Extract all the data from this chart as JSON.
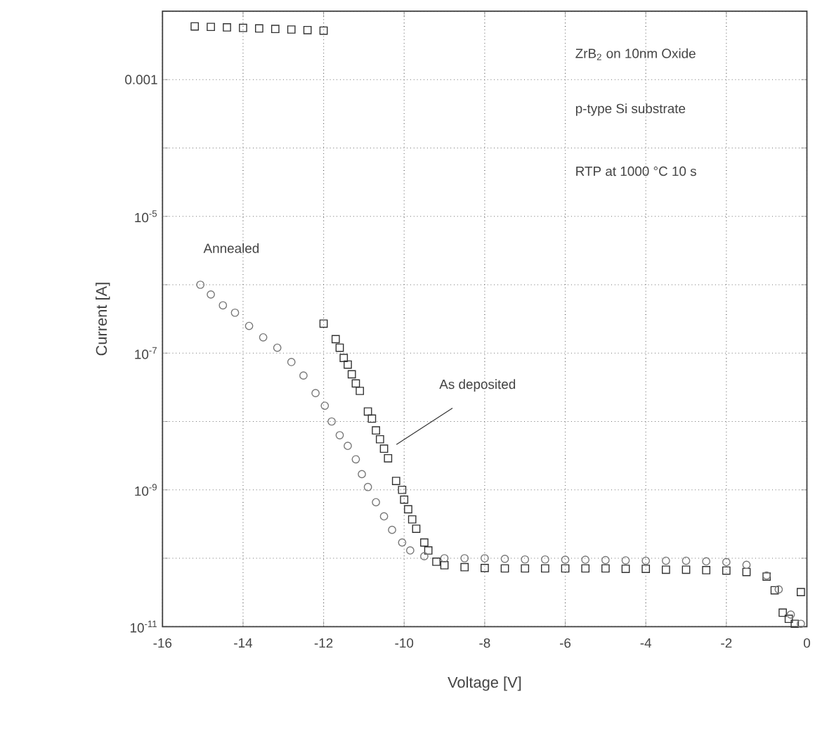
{
  "chart_data": {
    "type": "scatter",
    "xlabel": "Voltage [V]",
    "ylabel": "Current [A]",
    "log": "y",
    "grid": true,
    "xlim": [
      -16,
      0
    ],
    "xticks": [
      -16,
      -14,
      -12,
      -10,
      -8,
      -6,
      -4,
      -2,
      0
    ],
    "ylim": [
      1e-11,
      0.01
    ],
    "yticks": [
      {
        "value": 1e-11,
        "label": "10$^{-11}$"
      },
      {
        "value": 1e-10,
        "label": null
      },
      {
        "value": 1e-09,
        "label": "10$^{-9}$"
      },
      {
        "value": 1e-08,
        "label": null
      },
      {
        "value": 1e-07,
        "label": "10$^{-7}$"
      },
      {
        "value": 1e-06,
        "label": null
      },
      {
        "value": 1e-05,
        "label": "10$^{-5}$"
      },
      {
        "value": 0.0001,
        "label": null
      },
      {
        "value": 0.001,
        "label": "0.001"
      },
      {
        "value": 0.01,
        "label": null
      }
    ],
    "annotations": [
      "ZrB$_{2}$ on 10nm Oxide",
      "p-type Si substrate",
      "RTP at 1000 °C 10 s",
      "Annealed",
      "As deposited"
    ],
    "series": [
      {
        "color": "#333333",
        "marker": "square",
        "x": [
          -15.2,
          -14.8,
          -14.4,
          -14.0,
          -13.6,
          -13.2,
          -12.8,
          -12.4,
          -12.0
        ],
        "values": [
          0.006,
          0.0059,
          0.0058,
          0.0057,
          0.0056,
          0.0055,
          0.0054,
          0.0053,
          0.0052
        ]
      },
      {
        "color": "#333333",
        "marker": "square",
        "x": [
          -12.0,
          -11.7,
          -11.6,
          -11.5,
          -11.4,
          -11.3,
          -11.2,
          -11.1,
          -10.9,
          -10.8,
          -10.7,
          -10.6,
          -10.5,
          -10.4,
          -10.2,
          -10.05,
          -10.0,
          -9.9,
          -9.8,
          -9.7,
          -9.5,
          -9.4,
          -9.2,
          -9.0,
          -8.5,
          -8.0,
          -7.5,
          -7.0,
          -6.5,
          -6.0,
          -5.5,
          -5.0,
          -4.5,
          -4.0,
          -3.5,
          -3.0,
          -2.5,
          -2.0,
          -1.5,
          -1.0,
          -0.8,
          -0.6,
          -0.45,
          -0.3,
          -0.15
        ],
        "values": [
          2.7e-07,
          1.6e-07,
          1.2e-07,
          8.5e-08,
          6.8e-08,
          4.9e-08,
          3.6e-08,
          2.8e-08,
          1.4e-08,
          1.1e-08,
          7.4e-09,
          5.5e-09,
          4e-09,
          2.9e-09,
          1.35e-09,
          1e-09,
          7.2e-10,
          5.2e-10,
          3.7e-10,
          2.7e-10,
          1.7e-10,
          1.3e-10,
          8.9e-11,
          7.9e-11,
          7.4e-11,
          7.2e-11,
          7.1e-11,
          7.1e-11,
          7.1e-11,
          7.1e-11,
          7.1e-11,
          7.1e-11,
          7e-11,
          7e-11,
          6.8e-11,
          6.8e-11,
          6.7e-11,
          6.6e-11,
          6.3e-11,
          5.4e-11,
          3.4e-11,
          1.6e-11,
          1.3e-11,
          1.1e-11,
          3.2e-11
        ]
      },
      {
        "color": "#777777",
        "marker": "circle",
        "x": [
          -15.06,
          -14.8,
          -14.5,
          -14.2,
          -13.85,
          -13.5,
          -13.15,
          -12.8,
          -12.5,
          -12.2,
          -11.97,
          -11.8,
          -11.6,
          -11.4,
          -11.2,
          -11.05,
          -10.9,
          -10.7,
          -10.5,
          -10.3,
          -10.05,
          -9.85,
          -9.5,
          -9.0,
          -8.5,
          -8.0,
          -7.5,
          -7.0,
          -6.5,
          -6.0,
          -5.5,
          -5.0,
          -4.5,
          -4.0,
          -3.5,
          -3.0,
          -2.5,
          -2.0,
          -1.5,
          -1.0,
          -0.7,
          -0.4,
          -0.15
        ],
        "values": [
          1e-06,
          7.2e-07,
          5e-07,
          3.9e-07,
          2.5e-07,
          1.7e-07,
          1.2e-07,
          7.4e-08,
          4.7e-08,
          2.6e-08,
          1.7e-08,
          1e-08,
          6.3e-09,
          4.4e-09,
          2.8e-09,
          1.7e-09,
          1.1e-09,
          6.6e-10,
          4.1e-10,
          2.6e-10,
          1.7e-10,
          1.3e-10,
          1.07e-10,
          1e-10,
          1e-10,
          1e-10,
          9.8e-11,
          9.6e-11,
          9.6e-11,
          9.5e-11,
          9.5e-11,
          9.4e-11,
          9.3e-11,
          9.2e-11,
          9.2e-11,
          9.2e-11,
          9e-11,
          8.8e-11,
          8e-11,
          5.6e-11,
          3.5e-11,
          1.5e-11,
          1.1e-11
        ]
      }
    ]
  }
}
